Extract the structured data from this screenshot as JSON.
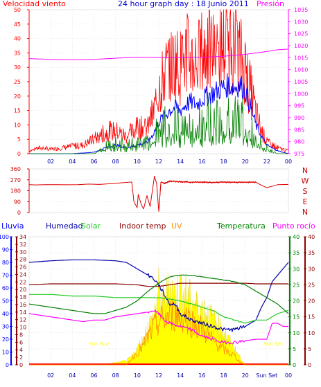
{
  "title": "24 hour graph day : 18 Junio 2011",
  "colors": {
    "wind": "#ff0000",
    "pressure": "#ff00ff",
    "title": "#0000cc",
    "gust": "#ff0000",
    "avg": "#0000ff",
    "dirmark": "#008000",
    "rain": "#0000ff",
    "humidity": "#0000aa",
    "solar": "#22cc22",
    "indoor": "#8b0000",
    "uv": "#ff8c00",
    "temp": "#008000",
    "dew": "#ff00ff",
    "solarfill": "#ffff00",
    "suntext": "#ffff00",
    "dirline": "#dd0000",
    "axisdir": "#cc0000"
  },
  "chart_data": [
    {
      "type": "line",
      "title": "24 hour graph day : 18 Junio 2011",
      "left_label": "Velocidad viento",
      "right_label": "Presión",
      "x_ticks": [
        "02",
        "04",
        "06",
        "08",
        "10",
        "12",
        "14",
        "16",
        "18",
        "20",
        "22",
        "00"
      ],
      "y_left_ticks": [
        "0",
        "5",
        "10",
        "15",
        "20",
        "25",
        "30",
        "35",
        "40",
        "45",
        "50"
      ],
      "y_right_ticks": [
        "975",
        "980",
        "985",
        "990",
        "995",
        "1000",
        "1005",
        "1010",
        "1015",
        "1020",
        "1025",
        "1030",
        "1035"
      ],
      "ylim_left": [
        0,
        50
      ],
      "ylim_right": [
        975,
        1035
      ],
      "series": [
        {
          "key": "gust",
          "x": [
            0,
            1,
            2,
            3,
            4,
            5,
            6,
            7,
            8,
            9,
            10,
            11,
            11.5,
            12,
            12.5,
            13,
            13.5,
            14,
            14.5,
            15,
            15.5,
            16,
            16.5,
            17,
            17.5,
            18,
            18.5,
            19,
            19.5,
            20,
            20.5,
            21,
            21.5,
            22,
            23,
            24
          ],
          "values": [
            1,
            2,
            1.5,
            2,
            2.5,
            3,
            5,
            7,
            8,
            6,
            9,
            9,
            14,
            22,
            28,
            30,
            32,
            30,
            34,
            33,
            32,
            35,
            34,
            36,
            35,
            38,
            37,
            36,
            34,
            30,
            22,
            14,
            8,
            4,
            2,
            1
          ]
        },
        {
          "key": "avg",
          "x": [
            0,
            2,
            4,
            6,
            7,
            8,
            9,
            10,
            11,
            11.5,
            12,
            12.5,
            13,
            13.5,
            14,
            14.5,
            15,
            15.5,
            16,
            16.5,
            17,
            17.5,
            18,
            18.5,
            19,
            19.5,
            20,
            20.5,
            21,
            21.5,
            22,
            23,
            24
          ],
          "values": [
            0,
            0,
            0,
            0.5,
            2,
            3,
            2,
            3,
            4,
            7,
            11,
            13,
            15,
            16,
            15,
            17,
            18,
            17,
            19,
            20,
            21,
            22,
            23,
            24,
            23,
            24,
            22,
            16,
            10,
            6,
            3,
            1,
            0
          ]
        },
        {
          "key": "dirmark",
          "x": [
            0,
            4,
            6,
            7,
            8,
            9,
            10,
            11,
            11.5,
            12,
            12.5,
            13,
            13.5,
            14,
            14.5,
            15,
            15.5,
            16,
            16.5,
            17,
            17.5,
            18,
            18.5,
            19,
            19.5,
            20,
            20.5,
            21,
            22,
            23,
            24
          ],
          "values": [
            0,
            0,
            0,
            3,
            4,
            3,
            4,
            5,
            7,
            9,
            11,
            10,
            12,
            11,
            13,
            12,
            13,
            12,
            14,
            13,
            15,
            14,
            15,
            13,
            14,
            12,
            9,
            6,
            2,
            0,
            0
          ]
        },
        {
          "key": "pressure",
          "x": [
            0,
            2,
            4,
            6,
            8,
            10,
            12,
            14,
            16,
            18,
            20,
            22,
            23,
            24
          ],
          "values": [
            1014.6,
            1014.3,
            1014.1,
            1014.3,
            1014.8,
            1015.2,
            1015.1,
            1015.0,
            1015.2,
            1015.6,
            1016.4,
            1017.6,
            1018.3,
            1018.6
          ]
        }
      ]
    },
    {
      "type": "line",
      "y_ticks": [
        "0",
        "90",
        "180",
        "270",
        "360"
      ],
      "compass_labels": [
        "N",
        "W",
        "S",
        "E",
        "N"
      ],
      "ylim": [
        0,
        360
      ],
      "series": [
        {
          "key": "dirline",
          "x": [
            0,
            0.6,
            1.5,
            2.5,
            3.5,
            4.5,
            5.5,
            6.5,
            7.5,
            8.5,
            9.2,
            9.5,
            9.7,
            10.0,
            10.1,
            10.4,
            10.6,
            10.9,
            11.2,
            11.6,
            11.8,
            12.0,
            12.2,
            12.3,
            12.5,
            13,
            14,
            15,
            16,
            17,
            18,
            19,
            20,
            21,
            21.5,
            22,
            23,
            24
          ],
          "values": [
            230,
            228,
            230,
            230,
            229,
            230,
            235,
            232,
            238,
            245,
            250,
            252,
            90,
            40,
            150,
            60,
            30,
            140,
            50,
            300,
            240,
            10,
            250,
            250,
            240,
            258,
            255,
            250,
            252,
            247,
            252,
            250,
            250,
            250,
            225,
            205,
            230,
            232
          ]
        }
      ]
    },
    {
      "type": "line",
      "legend": [
        "Lluvia",
        "Humedad",
        "Solar",
        "Indoor temp",
        "UV",
        "Temperatura",
        "Punto rocío"
      ],
      "x_ticks": [
        "02",
        "04",
        "06",
        "08",
        "10",
        "12",
        "14",
        "16",
        "18",
        "20",
        "Sun Set",
        "00"
      ],
      "sunrise_label": "Sun Rise",
      "sunset_label": "Sun Set",
      "axis_rain_ticks": [
        "0",
        "10",
        "20",
        "30",
        "40",
        "50",
        "60",
        "70",
        "80",
        "90",
        "100"
      ],
      "axis_hum_ticks": [
        "0",
        "2",
        "4",
        "6",
        "8",
        "10",
        "12",
        "14",
        "16",
        "18",
        "20",
        "22",
        "24",
        "26",
        "28",
        "30",
        "32",
        "34"
      ],
      "axis_temp_ticks": [
        "0",
        "5",
        "10",
        "15",
        "20",
        "25",
        "30",
        "35",
        "40"
      ],
      "axis_dew_ticks": [
        "0",
        "5",
        "10",
        "15",
        "20",
        "25",
        "30",
        "35",
        "40"
      ],
      "ylim": [
        0,
        40
      ],
      "series": [
        {
          "key": "humidity",
          "x": [
            0,
            2,
            4,
            6,
            8,
            9,
            10,
            11,
            11.5,
            12,
            12.5,
            13,
            13.5,
            14,
            15,
            16,
            17,
            18,
            19,
            19.5,
            20,
            20.5,
            21,
            21.5,
            22,
            22.5,
            23,
            23.5,
            24
          ],
          "values": [
            32,
            32.5,
            32.8,
            32.8,
            32.5,
            32,
            30,
            28,
            27,
            25,
            22,
            19,
            19,
            16,
            14,
            13,
            12,
            11,
            11,
            11.5,
            12,
            13,
            14,
            18,
            21,
            26,
            28,
            30,
            32
          ]
        },
        {
          "key": "solar",
          "x": [
            0,
            2,
            4,
            6,
            8,
            10,
            11,
            12,
            13,
            14,
            15,
            16,
            17,
            18,
            19,
            20,
            21,
            22,
            23,
            24
          ],
          "values": [
            22,
            22,
            21.5,
            21.5,
            21,
            21,
            21,
            21,
            20.5,
            20,
            19,
            18,
            17,
            15,
            14,
            13,
            14,
            14,
            16,
            17
          ]
        },
        {
          "key": "indoor",
          "x": [
            0,
            2,
            4,
            6,
            8,
            10,
            11,
            12,
            13,
            14,
            15,
            16,
            17,
            18,
            19,
            20,
            21,
            22,
            23,
            24
          ],
          "values": [
            25,
            25.3,
            25.3,
            25.3,
            25.3,
            25,
            24.5,
            24.5,
            25,
            25.5,
            25.5,
            25.5,
            25.5,
            25.5,
            25.5,
            25.5,
            25.3,
            25.3,
            25.3,
            25.3
          ]
        },
        {
          "key": "temp",
          "x": [
            0,
            1,
            2,
            3,
            4,
            5,
            6,
            7,
            8,
            9,
            10,
            11,
            12,
            13,
            14,
            15,
            16,
            17,
            18,
            19,
            20,
            21,
            22,
            23,
            24
          ],
          "values": [
            19,
            18.5,
            18,
            17.5,
            17,
            16.5,
            16,
            16,
            17,
            18,
            20,
            23,
            25.5,
            27.5,
            28,
            28,
            27.5,
            27,
            26.5,
            26,
            25,
            23,
            21,
            19,
            16
          ]
        },
        {
          "key": "dew",
          "x": [
            0,
            1,
            2,
            3,
            4,
            5,
            6,
            7,
            8,
            9,
            10,
            11,
            11.5,
            12,
            12.5,
            13,
            14,
            15,
            16,
            17,
            18,
            19,
            20,
            21,
            22,
            22.5,
            23,
            23.5,
            24
          ],
          "values": [
            16,
            15.5,
            15,
            14.5,
            14,
            13.5,
            14,
            14,
            15,
            15.5,
            16,
            16.5,
            17,
            16,
            14,
            13,
            12,
            11,
            9,
            8,
            7,
            7,
            7.5,
            8,
            8,
            13,
            13,
            12,
            12
          ]
        },
        {
          "key": "uv",
          "x": [
            0,
            9,
            9.5,
            10,
            10.5,
            11,
            11.5,
            12,
            12.5,
            13,
            13.5,
            14,
            14.5,
            15,
            15.5,
            16,
            16.5,
            17,
            18,
            19,
            19.5,
            20,
            24
          ],
          "values": [
            0,
            0,
            2,
            4,
            6,
            9,
            12,
            14,
            15,
            16,
            17,
            15,
            16,
            14,
            13,
            12,
            10,
            8,
            5,
            3,
            1,
            0,
            0
          ]
        },
        {
          "key": "solarfill",
          "x": [
            0,
            6.5,
            7,
            8,
            9,
            9.5,
            10,
            10.5,
            11,
            11.5,
            12,
            12.5,
            13,
            13.5,
            14,
            14.5,
            15,
            15.5,
            16,
            16.5,
            17,
            17.5,
            18,
            18.5,
            19,
            19.5,
            20,
            24
          ],
          "values": [
            0,
            0,
            0.3,
            0.8,
            1.5,
            3,
            6,
            9,
            14,
            17,
            28,
            22,
            30,
            26,
            29,
            26,
            24,
            22,
            21,
            19,
            17,
            15,
            12,
            9,
            6,
            3,
            0,
            0
          ]
        }
      ]
    }
  ]
}
